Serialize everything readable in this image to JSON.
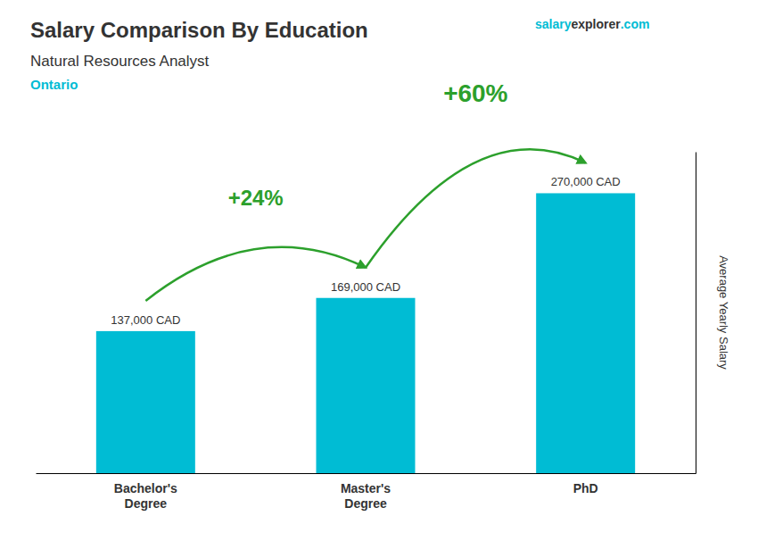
{
  "chart_data": {
    "type": "bar",
    "title": "Salary Comparison By Education",
    "subtitle": "Natural Resources Analyst",
    "region": "Ontario",
    "watermark": [
      "salary",
      "explorer",
      ".com"
    ],
    "ylabel": "Average Yearly Salary",
    "categories": [
      "Bachelor's\nDegree",
      "Master's\nDegree",
      "PhD"
    ],
    "values": [
      137000,
      169000,
      270000
    ],
    "value_labels": [
      "137,000 CAD",
      "169,000 CAD",
      "270,000 CAD"
    ],
    "data_labels": true,
    "color": "#00bcd4",
    "ylim": [
      0,
      310000
    ],
    "tick_labels": "x",
    "grid": false,
    "annotations": [
      "+24%",
      "+60%"
    ]
  }
}
